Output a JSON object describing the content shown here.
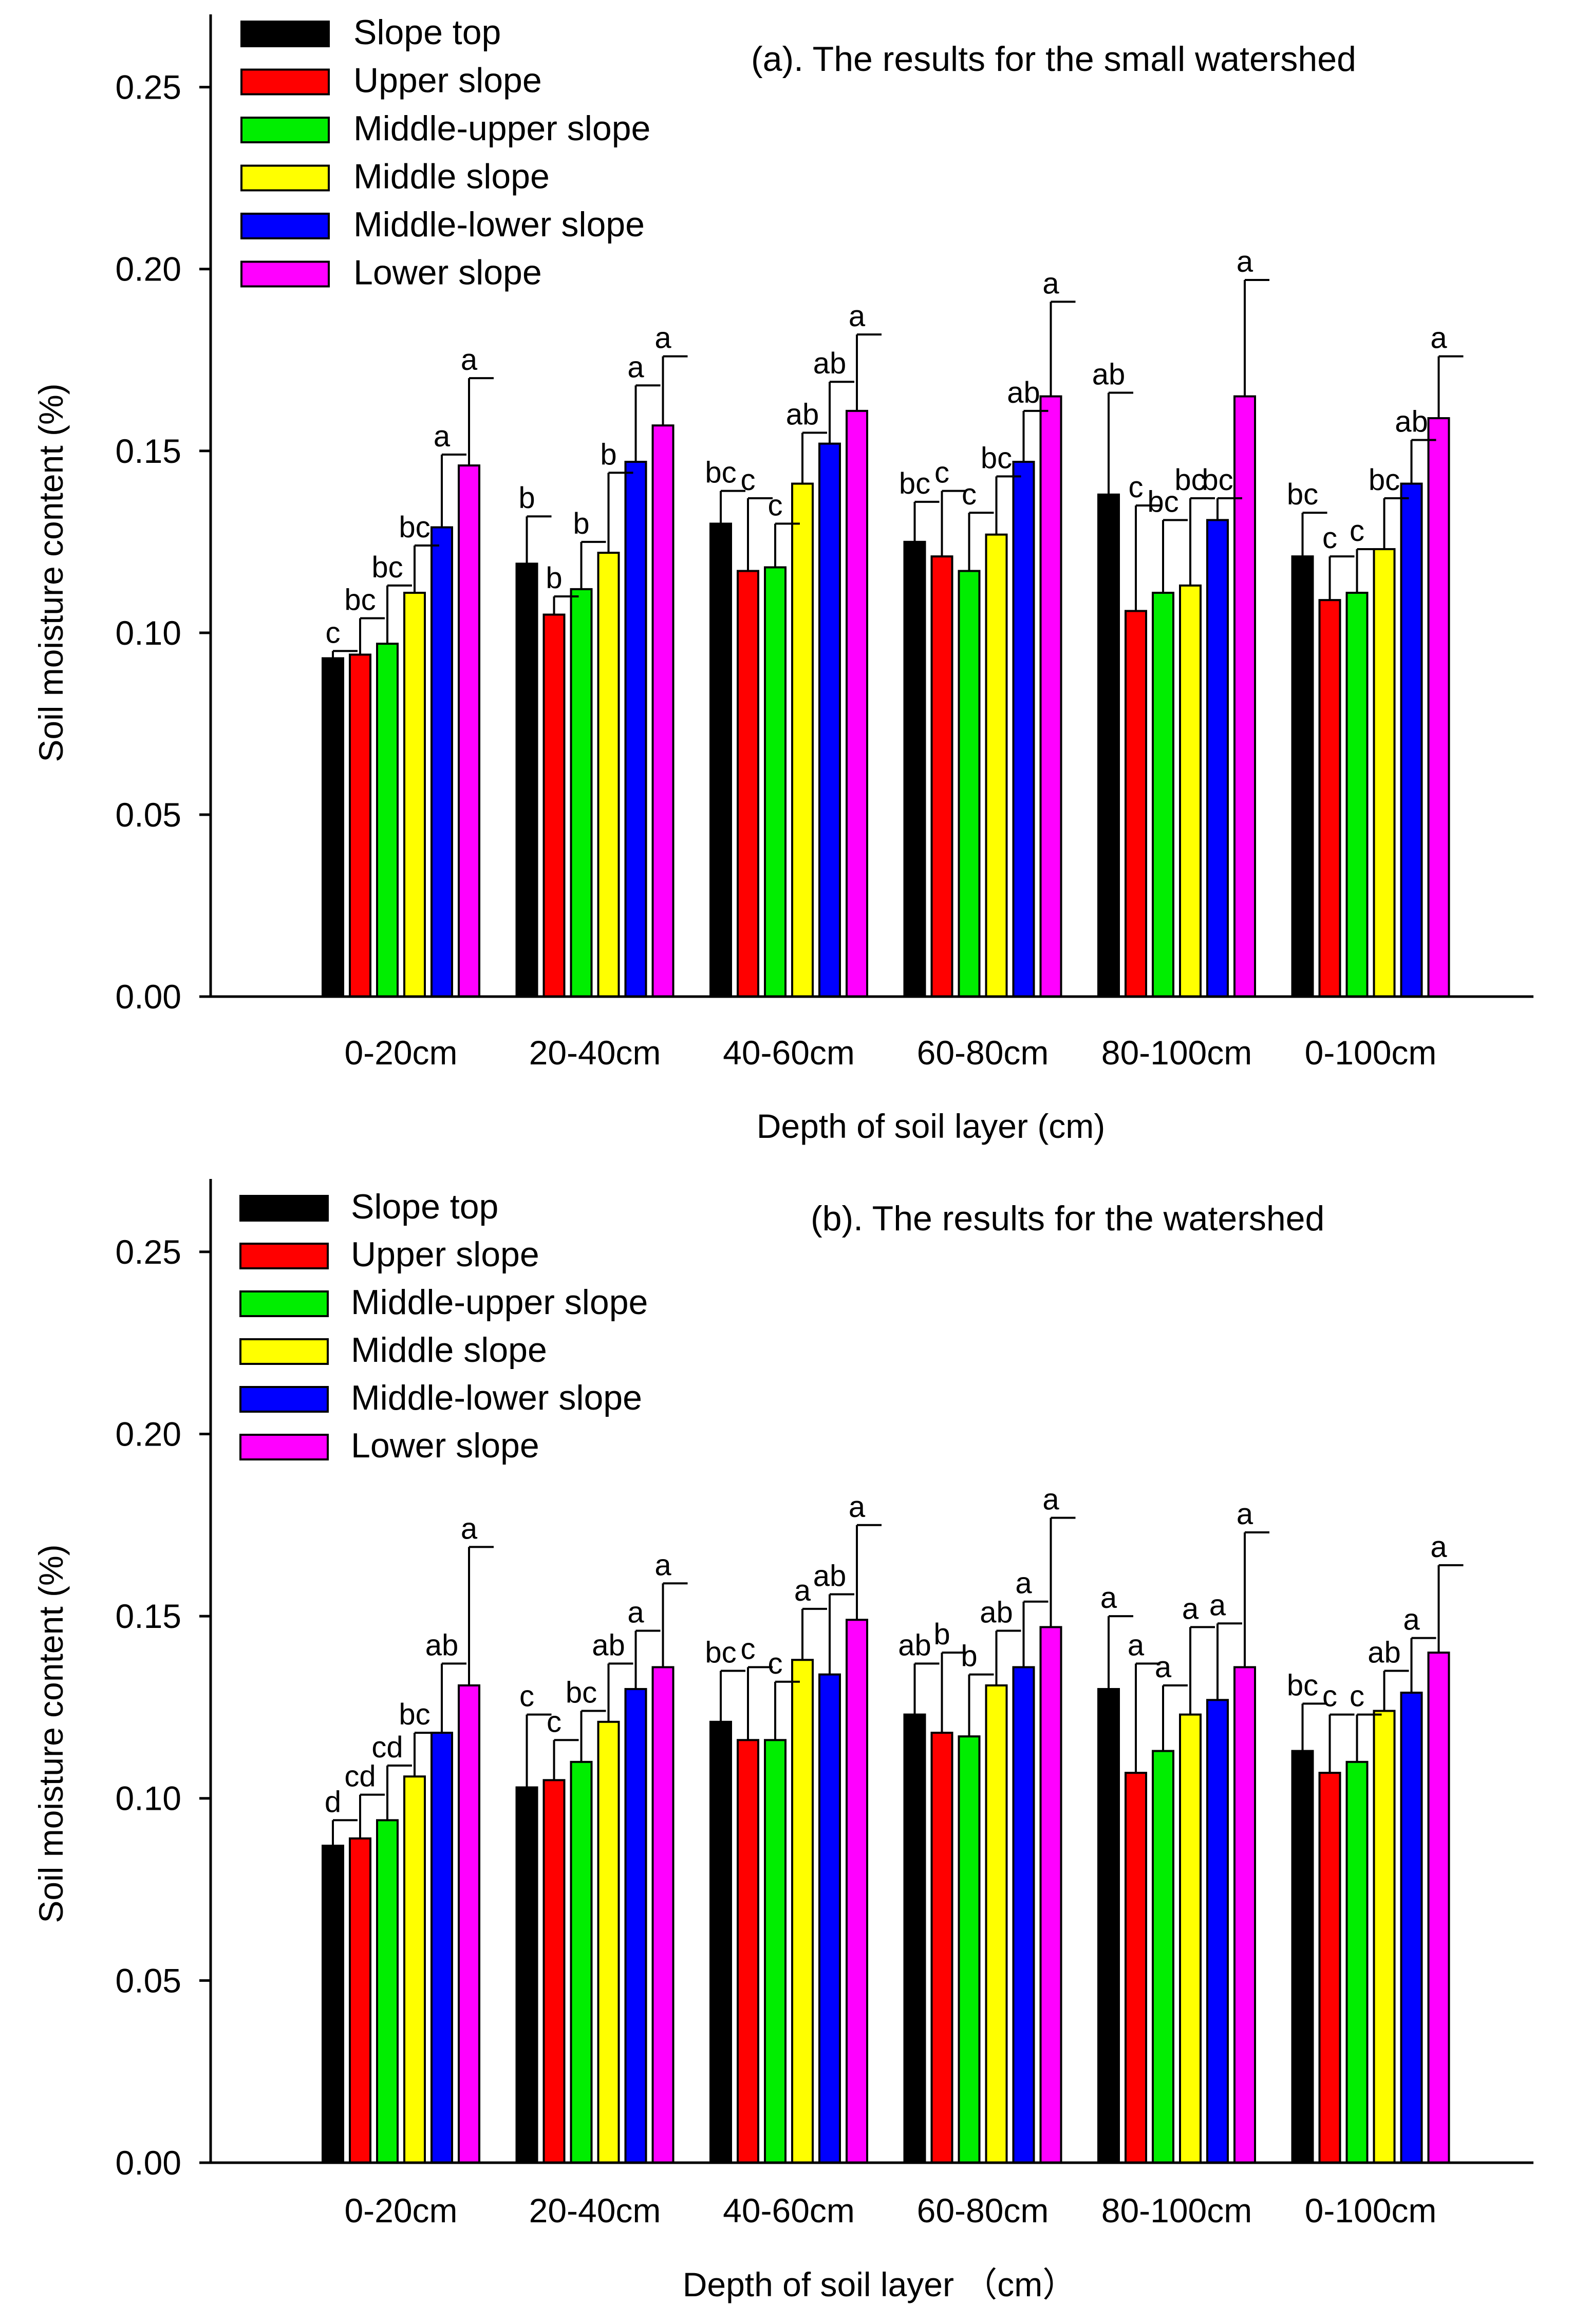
{
  "chart_data": [
    {
      "type": "bar",
      "title": "(a). The results for the small watershed",
      "xlabel": "Depth of soil layer (cm)",
      "ylabel": "Soil moisture content (%)",
      "ylim": [
        0,
        0.27
      ],
      "yticks": [
        "0.00",
        "0.05",
        "0.10",
        "0.15",
        "0.20",
        "0.25"
      ],
      "ytick_values": [
        0,
        0.05,
        0.1,
        0.15,
        0.2,
        0.25
      ],
      "legend_position": "top-left",
      "categories": [
        "0-20cm",
        "20-40cm",
        "40-60cm",
        "60-80cm",
        "80-100cm",
        "0-100cm"
      ],
      "series": [
        {
          "name": "Slope top",
          "color": "#000000",
          "values": [
            0.093,
            0.119,
            0.13,
            0.125,
            0.138,
            0.121
          ],
          "errors": [
            0.002,
            0.013,
            0.009,
            0.011,
            0.028,
            0.012
          ],
          "letters": [
            "c",
            "b",
            "bc",
            "bc",
            "ab",
            "bc"
          ]
        },
        {
          "name": "Upper slope",
          "color": "#ff0000",
          "values": [
            0.094,
            0.105,
            0.117,
            0.121,
            0.106,
            0.109
          ],
          "errors": [
            0.01,
            0.005,
            0.02,
            0.018,
            0.029,
            0.012
          ],
          "letters": [
            "bc",
            "b",
            "c",
            "c",
            "c",
            "c"
          ]
        },
        {
          "name": "Middle-upper slope",
          "color": "#00ee00",
          "values": [
            0.097,
            0.112,
            0.118,
            0.117,
            0.111,
            0.111
          ],
          "errors": [
            0.016,
            0.013,
            0.012,
            0.016,
            0.02,
            0.012
          ],
          "letters": [
            "bc",
            "b",
            "c",
            "c",
            "bc",
            "c"
          ]
        },
        {
          "name": "Middle slope",
          "color": "#ffff00",
          "values": [
            0.111,
            0.122,
            0.141,
            0.127,
            0.113,
            0.123
          ],
          "errors": [
            0.013,
            0.022,
            0.014,
            0.016,
            0.024,
            0.014
          ],
          "letters": [
            "bc",
            "b",
            "ab",
            "bc",
            "bc",
            "bc"
          ]
        },
        {
          "name": "Middle-lower slope",
          "color": "#0000ff",
          "values": [
            0.129,
            0.147,
            0.152,
            0.147,
            0.131,
            0.141
          ],
          "errors": [
            0.02,
            0.021,
            0.017,
            0.014,
            0.006,
            0.012
          ],
          "letters": [
            "a",
            "a",
            "ab",
            "ab",
            "bc",
            "ab"
          ]
        },
        {
          "name": "Lower slope",
          "color": "#ff00ff",
          "values": [
            0.146,
            0.157,
            0.161,
            0.165,
            0.165,
            0.159
          ],
          "errors": [
            0.024,
            0.019,
            0.021,
            0.026,
            0.032,
            0.017
          ],
          "letters": [
            "a",
            "a",
            "a",
            "a",
            "a",
            "a"
          ]
        }
      ]
    },
    {
      "type": "bar",
      "title": "(b). The results for the watershed",
      "xlabel": "Depth of soil layer （cm）",
      "ylabel": "Soil moisture content (%)",
      "ylim": [
        0,
        0.27
      ],
      "yticks": [
        "0.00",
        "0.05",
        "0.10",
        "0.15",
        "0.20",
        "0.25"
      ],
      "ytick_values": [
        0,
        0.05,
        0.1,
        0.15,
        0.2,
        0.25
      ],
      "legend_position": "top-left",
      "categories": [
        "0-20cm",
        "20-40cm",
        "40-60cm",
        "60-80cm",
        "80-100cm",
        "0-100cm"
      ],
      "series": [
        {
          "name": "Slope top",
          "color": "#000000",
          "values": [
            0.087,
            0.103,
            0.121,
            0.123,
            0.13,
            0.113
          ],
          "errors": [
            0.007,
            0.02,
            0.014,
            0.014,
            0.02,
            0.013
          ],
          "letters": [
            "d",
            "c",
            "bc",
            "ab",
            "a",
            "bc"
          ]
        },
        {
          "name": "Upper slope",
          "color": "#ff0000",
          "values": [
            0.089,
            0.105,
            0.116,
            0.118,
            0.107,
            0.107
          ],
          "errors": [
            0.012,
            0.011,
            0.02,
            0.022,
            0.03,
            0.016
          ],
          "letters": [
            "cd",
            "c",
            "c",
            "b",
            "a",
            "c"
          ]
        },
        {
          "name": "Middle-upper slope",
          "color": "#00ee00",
          "values": [
            0.094,
            0.11,
            0.116,
            0.117,
            0.113,
            0.11
          ],
          "errors": [
            0.015,
            0.014,
            0.016,
            0.017,
            0.018,
            0.013
          ],
          "letters": [
            "cd",
            "bc",
            "c",
            "b",
            "a",
            "c"
          ]
        },
        {
          "name": "Middle slope",
          "color": "#ffff00",
          "values": [
            0.106,
            0.121,
            0.138,
            0.131,
            0.123,
            0.124
          ],
          "errors": [
            0.012,
            0.016,
            0.014,
            0.015,
            0.024,
            0.011
          ],
          "letters": [
            "bc",
            "ab",
            "a",
            "ab",
            "a",
            "ab"
          ]
        },
        {
          "name": "Middle-lower slope",
          "color": "#0000ff",
          "values": [
            0.118,
            0.13,
            0.134,
            0.136,
            0.127,
            0.129
          ],
          "errors": [
            0.019,
            0.016,
            0.022,
            0.018,
            0.021,
            0.015
          ],
          "letters": [
            "ab",
            "a",
            "ab",
            "a",
            "a",
            "a"
          ]
        },
        {
          "name": "Lower slope",
          "color": "#ff00ff",
          "values": [
            0.131,
            0.136,
            0.149,
            0.147,
            0.136,
            0.14
          ],
          "errors": [
            0.038,
            0.023,
            0.026,
            0.03,
            0.037,
            0.024
          ],
          "letters": [
            "a",
            "a",
            "a",
            "a",
            "a",
            "a"
          ]
        }
      ]
    }
  ]
}
